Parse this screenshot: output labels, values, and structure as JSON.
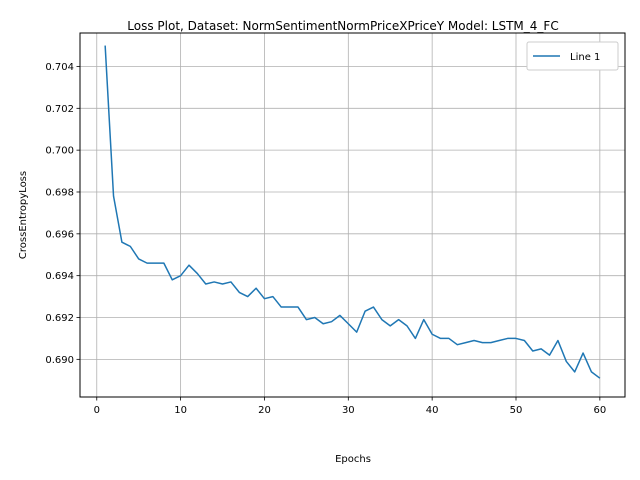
{
  "chart_data": {
    "type": "line",
    "title": "Loss Plot, Dataset: NormSentimentNormPriceXPriceY Model: LSTM_4_FC",
    "xlabel": "Epochs",
    "ylabel": "CrossEntropyLoss",
    "xlim": [
      -2.0,
      63.0
    ],
    "ylim": [
      0.6882,
      0.7056
    ],
    "xticks": [
      0,
      10,
      20,
      30,
      40,
      50,
      60
    ],
    "xtick_labels": [
      "0",
      "10",
      "20",
      "30",
      "40",
      "50",
      "60"
    ],
    "yticks": [
      0.69,
      0.692,
      0.694,
      0.696,
      0.698,
      0.7,
      0.702,
      0.704
    ],
    "ytick_labels": [
      "0.690",
      "0.692",
      "0.694",
      "0.696",
      "0.698",
      "0.700",
      "0.702",
      "0.704"
    ],
    "grid": true,
    "legend_position": "top-right",
    "series": [
      {
        "name": "Line 1",
        "color": "#1f77b4",
        "x": [
          1,
          2,
          3,
          4,
          5,
          6,
          7,
          8,
          9,
          10,
          11,
          12,
          13,
          14,
          15,
          16,
          17,
          18,
          19,
          20,
          21,
          22,
          23,
          24,
          25,
          26,
          27,
          28,
          29,
          30,
          31,
          32,
          33,
          34,
          35,
          36,
          37,
          38,
          39,
          40,
          41,
          42,
          43,
          44,
          45,
          46,
          47,
          48,
          49,
          50,
          51,
          52,
          53,
          54,
          55,
          56,
          57,
          58,
          59,
          60
        ],
        "y": [
          0.705,
          0.6978,
          0.6956,
          0.6954,
          0.6948,
          0.6946,
          0.6946,
          0.6946,
          0.6938,
          0.694,
          0.6945,
          0.6941,
          0.6936,
          0.6937,
          0.6936,
          0.6937,
          0.6932,
          0.693,
          0.6934,
          0.6929,
          0.693,
          0.6925,
          0.6925,
          0.6925,
          0.6919,
          0.692,
          0.6917,
          0.6918,
          0.6921,
          0.6917,
          0.6913,
          0.6923,
          0.6925,
          0.6919,
          0.6916,
          0.6919,
          0.6916,
          0.691,
          0.6919,
          0.6912,
          0.691,
          0.691,
          0.6907,
          0.6908,
          0.6909,
          0.6908,
          0.6908,
          0.6909,
          0.691,
          0.691,
          0.6909,
          0.6904,
          0.6905,
          0.6902,
          0.6909,
          0.6899,
          0.6894,
          0.6903,
          0.6894,
          0.6891
        ]
      }
    ]
  }
}
